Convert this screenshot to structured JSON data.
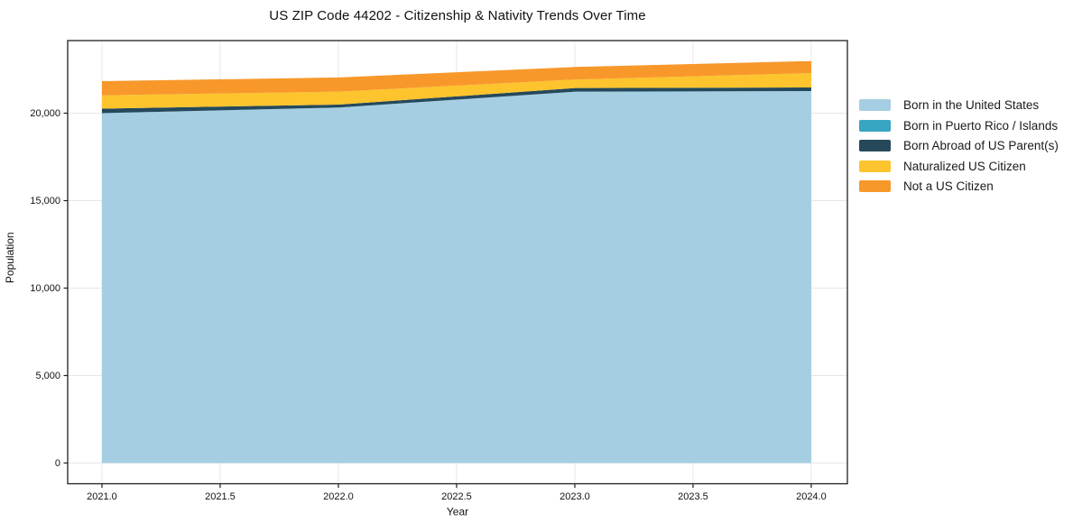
{
  "chart_data": {
    "type": "area",
    "stacked": true,
    "title": "US ZIP Code 44202 - Citizenship & Nativity Trends Over Time",
    "xlabel": "Year",
    "ylabel": "Population",
    "x": [
      2021,
      2022,
      2023,
      2024
    ],
    "series": [
      {
        "name": "Born in the United States",
        "color": "#a5cee3",
        "values": [
          20000,
          20320,
          21230,
          21265
        ]
      },
      {
        "name": "Born in Puerto Rico / Islands",
        "color": "#38a5c2",
        "values": [
          0,
          0,
          0,
          0
        ]
      },
      {
        "name": "Born Abroad of US Parent(s)",
        "color": "#25495b",
        "values": [
          260,
          170,
          205,
          205
        ]
      },
      {
        "name": "Naturalized US Citizen",
        "color": "#fdc42d",
        "values": [
          760,
          740,
          485,
          825
        ]
      },
      {
        "name": "Not a US Citizen",
        "color": "#f8982b",
        "values": [
          810,
          810,
          720,
          685
        ]
      }
    ],
    "x_ticks": [
      "2021.0",
      "2021.5",
      "2022.0",
      "2022.5",
      "2023.0",
      "2023.5",
      "2024.0"
    ],
    "x_tick_values": [
      2021,
      2021.5,
      2022,
      2022.5,
      2023,
      2023.5,
      2024
    ],
    "y_ticks": [
      "0",
      "5,000",
      "10,000",
      "15,000",
      "20,000"
    ],
    "y_tick_values": [
      0,
      5000,
      10000,
      15000,
      20000
    ],
    "xlim": [
      2020.855,
      2024.153
    ],
    "ylim": [
      -1186,
      24150
    ],
    "grid": true,
    "grid_color": "#e7e7e7",
    "spine_color": "#1f1f1f",
    "text_color": "#111111",
    "legend_position": "right"
  }
}
